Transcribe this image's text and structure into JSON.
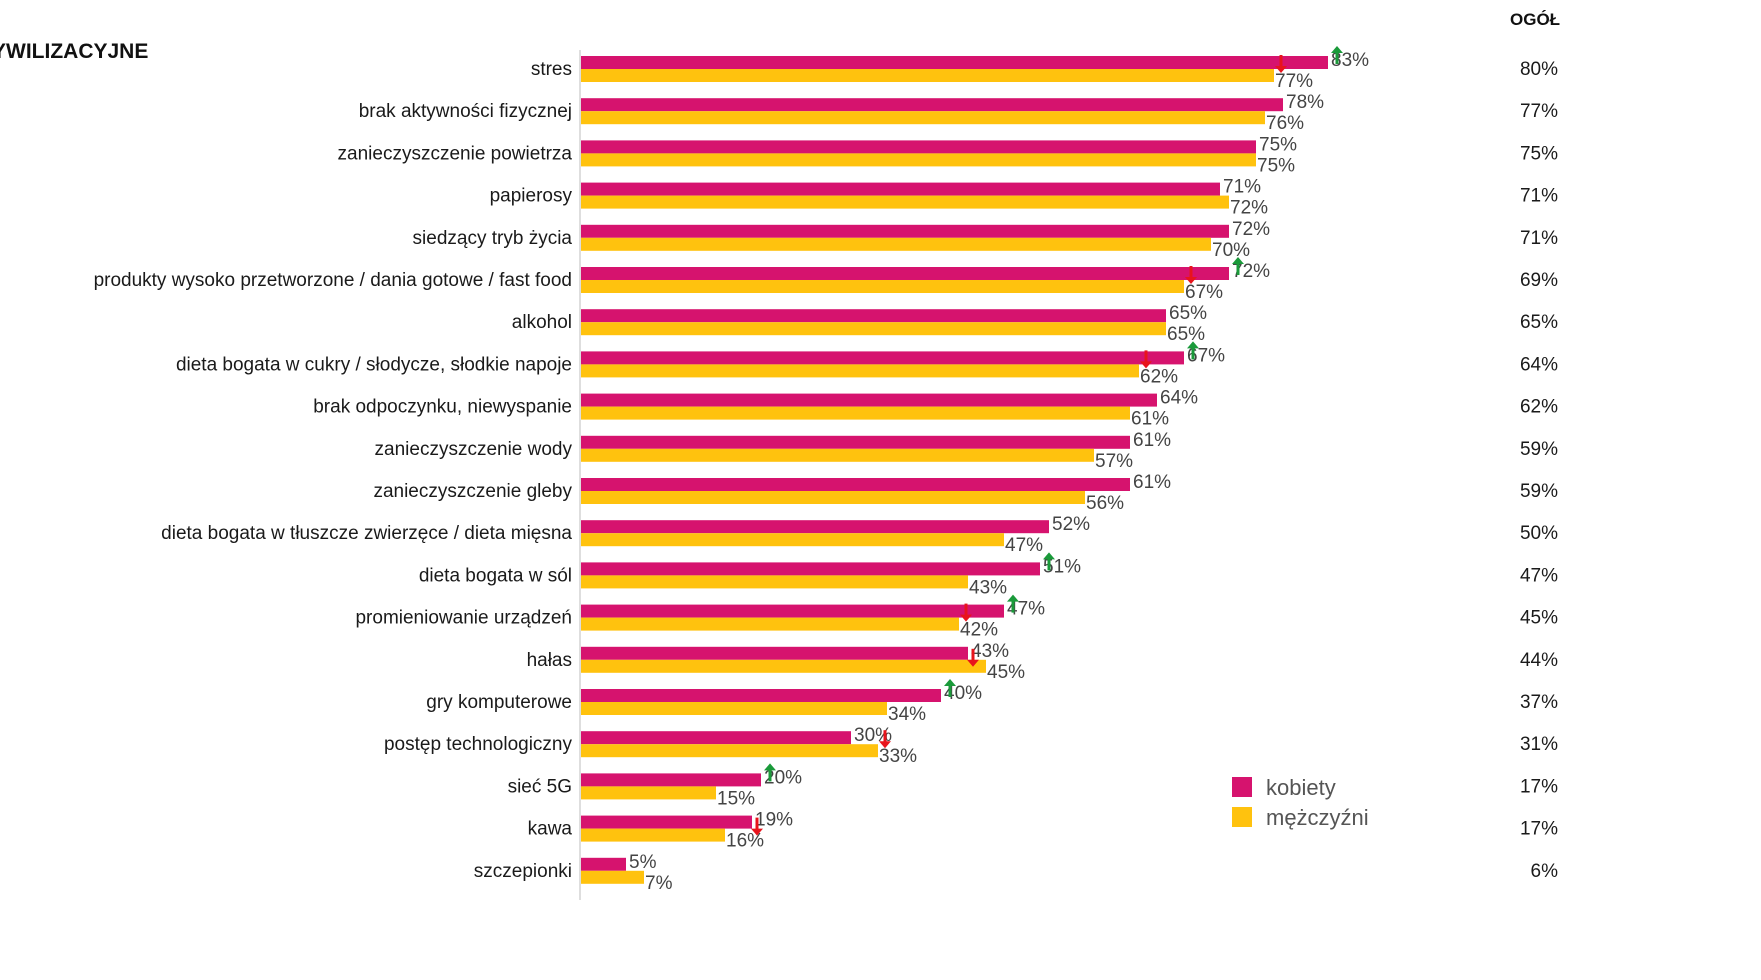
{
  "section_title": "YWILIZACYJNE",
  "total_header": "OGÓŁ",
  "footnote": "",
  "chart_data": {
    "type": "bar",
    "orientation": "horizontal",
    "categories": [
      "stres",
      "brak aktywności fizycznej",
      "zanieczyszczenie powietrza",
      "papierosy",
      "siedzący tryb życia",
      "produkty wysoko przetworzone / dania gotowe / fast food",
      "alkohol",
      "dieta bogata w cukry / słodycze, słodkie napoje",
      "brak odpoczynku, niewyspanie",
      "zanieczyszczenie wody",
      "zanieczyszczenie gleby",
      "dieta bogata w tłuszcze zwierzęce / dieta mięsna",
      "dieta bogata w sól",
      "promieniowanie urządzeń",
      "hałas",
      "gry komputerowe",
      "postęp technologiczny",
      "sieć 5G",
      "kawa",
      "szczepionki"
    ],
    "series": [
      {
        "name": "kobiety",
        "color": "#d6136e",
        "values": [
          83,
          78,
          75,
          71,
          72,
          72,
          65,
          67,
          64,
          61,
          61,
          52,
          51,
          47,
          43,
          40,
          30,
          20,
          19,
          5
        ]
      },
      {
        "name": "mężczyźni",
        "color": "#ffc20e",
        "values": [
          77,
          76,
          75,
          72,
          70,
          67,
          65,
          62,
          61,
          57,
          56,
          47,
          43,
          42,
          45,
          34,
          33,
          15,
          16,
          7
        ]
      }
    ],
    "total_values": [
      "80%",
      "77%",
      "75%",
      "71%",
      "71%",
      "69%",
      "65%",
      "64%",
      "62%",
      "59%",
      "59%",
      "50%",
      "47%",
      "45%",
      "44%",
      "37%",
      "31%",
      "17%",
      "17%",
      "6%"
    ],
    "value_suffix": "%",
    "xlim": [
      0,
      90
    ],
    "grid": false,
    "legend_position": "bottom-right",
    "arrows": [
      {
        "category_index": 0,
        "series": "kobiety",
        "direction": "up",
        "color": "#1a9a3a"
      },
      {
        "category_index": 0,
        "series": "mężczyźni",
        "direction": "down",
        "color": "#e8141c"
      },
      {
        "category_index": 5,
        "series": "kobiety",
        "direction": "up",
        "color": "#1a9a3a"
      },
      {
        "category_index": 5,
        "series": "mężczyźni",
        "direction": "down",
        "color": "#e8141c"
      },
      {
        "category_index": 7,
        "series": "kobiety",
        "direction": "up",
        "color": "#1a9a3a"
      },
      {
        "category_index": 7,
        "series": "mężczyźni",
        "direction": "down",
        "color": "#e8141c"
      },
      {
        "category_index": 12,
        "series": "kobiety",
        "direction": "up",
        "color": "#1a9a3a"
      },
      {
        "category_index": 13,
        "series": "kobiety",
        "direction": "up",
        "color": "#1a9a3a"
      },
      {
        "category_index": 13,
        "series": "mężczyźni",
        "direction": "down",
        "color": "#e8141c"
      },
      {
        "category_index": 14,
        "series": "kobiety",
        "direction": "down",
        "color": "#e8141c"
      },
      {
        "category_index": 15,
        "series": "kobiety",
        "direction": "up",
        "color": "#1a9a3a"
      },
      {
        "category_index": 16,
        "series": "mężczyźni",
        "direction": "down",
        "color": "#e8141c"
      },
      {
        "category_index": 17,
        "series": "kobiety",
        "direction": "up",
        "color": "#1a9a3a"
      },
      {
        "category_index": 18,
        "series": "kobiety",
        "direction": "down",
        "color": "#e8141c"
      }
    ]
  }
}
